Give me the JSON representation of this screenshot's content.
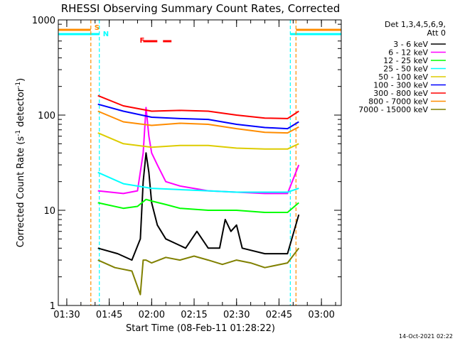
{
  "chart_data": {
    "type": "line",
    "title": "RHESSI Observing Summary Count Rates, Corrected",
    "xlabel": "Start Time (08-Feb-11 01:28:22)",
    "ylabel": "Corrected Count Rate (s",
    "ylabel_sup1": "-1",
    "ylabel_mid": " detector",
    "ylabel_sup2": "-1",
    "ylabel_end": ")",
    "y_scale": "log",
    "ylim": [
      1,
      1000
    ],
    "y_ticks": [
      {
        "value": 1,
        "label": "1"
      },
      {
        "value": 10,
        "label": "10"
      },
      {
        "value": 100,
        "label": "100"
      },
      {
        "value": 1000,
        "label": "1000"
      }
    ],
    "xlim": [
      "01:27",
      "03:07"
    ],
    "x_ticks": [
      "01:30",
      "01:45",
      "02:00",
      "02:15",
      "02:30",
      "02:45",
      "03:00"
    ],
    "x_minor_step_min": 5,
    "legend_header": [
      "Det 1,3,4,5,6,9,",
      "Att 0"
    ],
    "legend_placement": "right",
    "series": [
      {
        "name": "3 - 6 keV",
        "color": "#000000",
        "x": [
          "01:41",
          "01:48",
          "01:53",
          "01:56",
          "01:57",
          "01:58",
          "01:59",
          "02:00",
          "02:02",
          "02:05",
          "02:12",
          "02:16",
          "02:20",
          "02:24",
          "02:26",
          "02:28",
          "02:30",
          "02:32",
          "02:40",
          "02:48",
          "02:52"
        ],
        "y": [
          4,
          3.5,
          3,
          5,
          20,
          40,
          25,
          12,
          7,
          5,
          4,
          6,
          4,
          4,
          8,
          6,
          7,
          4,
          3.5,
          3.5,
          9
        ]
      },
      {
        "name": "6 - 12 keV",
        "color": "#ff00ff",
        "x": [
          "01:41",
          "01:50",
          "01:55",
          "01:57",
          "01:58",
          "01:59",
          "02:00",
          "02:02",
          "02:05",
          "02:10",
          "02:20",
          "02:30",
          "02:40",
          "02:48",
          "02:52"
        ],
        "y": [
          16,
          15,
          16,
          40,
          120,
          60,
          40,
          30,
          20,
          18,
          16,
          15.5,
          15,
          15,
          30
        ]
      },
      {
        "name": "12 - 25 keV",
        "color": "#00ff00",
        "x": [
          "01:41",
          "01:50",
          "01:55",
          "01:58",
          "02:00",
          "02:05",
          "02:10",
          "02:20",
          "02:30",
          "02:40",
          "02:48",
          "02:52"
        ],
        "y": [
          12,
          10.5,
          11,
          13,
          12.5,
          11.5,
          10.5,
          10,
          10,
          9.5,
          9.5,
          12
        ]
      },
      {
        "name": "25 - 50 keV",
        "color": "#00ffff",
        "x": [
          "01:41",
          "01:50",
          "02:00",
          "02:10",
          "02:20",
          "02:30",
          "02:40",
          "02:48",
          "02:52"
        ],
        "y": [
          25,
          19,
          17,
          16.5,
          16,
          15.5,
          15.5,
          15.5,
          17
        ]
      },
      {
        "name": "50 - 100 keV",
        "color": "#ddcc00",
        "x": [
          "01:41",
          "01:50",
          "02:00",
          "02:10",
          "02:20",
          "02:30",
          "02:40",
          "02:48",
          "02:52"
        ],
        "y": [
          65,
          50,
          46,
          48,
          48,
          45,
          44,
          44,
          50
        ]
      },
      {
        "name": "100 - 300 keV",
        "color": "#0000ff",
        "x": [
          "01:41",
          "01:50",
          "02:00",
          "02:10",
          "02:20",
          "02:30",
          "02:40",
          "02:48",
          "02:52"
        ],
        "y": [
          130,
          110,
          95,
          92,
          90,
          80,
          74,
          72,
          85
        ]
      },
      {
        "name": "300 - 800 keV",
        "color": "#ff0000",
        "x": [
          "01:41",
          "01:50",
          "02:00",
          "02:10",
          "02:20",
          "02:30",
          "02:40",
          "02:48",
          "02:52"
        ],
        "y": [
          160,
          125,
          110,
          112,
          110,
          100,
          93,
          92,
          110
        ]
      },
      {
        "name": "800 - 7000 keV",
        "color": "#ff8c00",
        "x": [
          "01:41",
          "01:50",
          "02:00",
          "02:10",
          "02:20",
          "02:30",
          "02:40",
          "02:48",
          "02:52"
        ],
        "y": [
          110,
          85,
          78,
          82,
          80,
          72,
          66,
          65,
          75
        ]
      },
      {
        "name": "7000 - 15000 keV",
        "color": "#808000",
        "x": [
          "01:41",
          "01:47",
          "01:53",
          "01:56",
          "01:57",
          "01:58",
          "02:00",
          "02:05",
          "02:10",
          "02:15",
          "02:20",
          "02:25",
          "02:30",
          "02:35",
          "02:40",
          "02:48",
          "02:52"
        ],
        "y": [
          3,
          2.5,
          2.3,
          1.3,
          3,
          3,
          2.8,
          3.2,
          3,
          3.3,
          3,
          2.7,
          3,
          2.8,
          2.5,
          2.8,
          4
        ]
      }
    ],
    "annotations": [
      {
        "text": "S",
        "color": "#ff8c00",
        "x": "01:39"
      },
      {
        "text": "N",
        "color": "#00ffff",
        "x": "01:42"
      },
      {
        "text": "F",
        "color": "#ff0000",
        "x": "01:55"
      }
    ],
    "markers": {
      "saa_color": "#ff8c00",
      "night_color": "#00ffff",
      "flare_color": "#ff0000",
      "night_intervals": [
        [
          "01:27",
          "01:41.5"
        ],
        [
          "02:49",
          "03:07"
        ]
      ],
      "saa_intervals": [
        [
          "01:27",
          "01:38.5"
        ],
        [
          "02:51",
          "03:07"
        ]
      ],
      "flare_segments": [
        [
          "01:57",
          "02:02"
        ],
        [
          "02:04",
          "02:07"
        ]
      ]
    },
    "footer_date": "14-Oct-2021 02:22"
  }
}
